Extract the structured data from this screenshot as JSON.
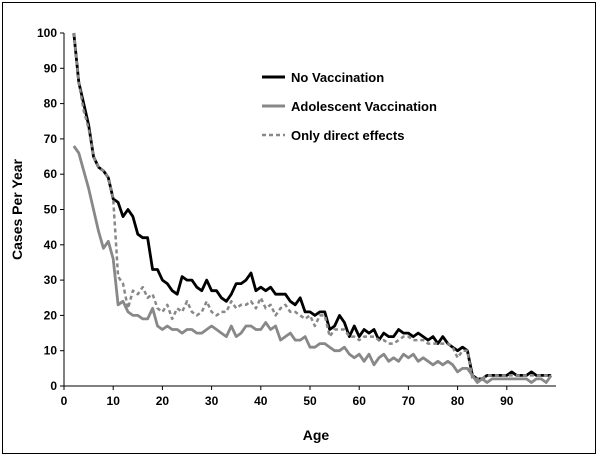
{
  "chart_data": {
    "type": "line",
    "title": "",
    "xlabel": "Age",
    "ylabel": "Cases Per Year",
    "xlim": [
      0,
      100
    ],
    "ylim": [
      0,
      100
    ],
    "x_ticks": [
      0,
      10,
      20,
      30,
      40,
      50,
      60,
      70,
      80,
      90
    ],
    "y_ticks": [
      0,
      10,
      20,
      30,
      40,
      50,
      60,
      70,
      80,
      90,
      100
    ],
    "grid": false,
    "legend_position": "top-right",
    "x": [
      2,
      3,
      4,
      5,
      6,
      7,
      8,
      9,
      10,
      11,
      12,
      13,
      14,
      15,
      16,
      17,
      18,
      19,
      20,
      21,
      22,
      23,
      24,
      25,
      26,
      27,
      28,
      29,
      30,
      31,
      32,
      33,
      34,
      35,
      36,
      37,
      38,
      39,
      40,
      41,
      42,
      43,
      44,
      45,
      46,
      47,
      48,
      49,
      50,
      51,
      52,
      53,
      54,
      55,
      56,
      57,
      58,
      59,
      60,
      61,
      62,
      63,
      64,
      65,
      66,
      67,
      68,
      69,
      70,
      71,
      72,
      73,
      74,
      75,
      76,
      77,
      78,
      79,
      80,
      81,
      82,
      83,
      84,
      85,
      86,
      87,
      88,
      89,
      90,
      91,
      92,
      93,
      94,
      95,
      96,
      97,
      98,
      99
    ],
    "series": [
      {
        "name": "No Vaccination",
        "color": "#000000",
        "dash": "solid",
        "values": [
          100,
          86,
          80,
          74,
          65,
          62,
          61,
          59,
          53,
          52,
          48,
          50,
          48,
          43,
          42,
          42,
          33,
          33,
          30,
          29,
          27,
          26,
          31,
          30,
          30,
          28,
          27,
          30,
          27,
          27,
          25,
          24,
          26,
          29,
          29,
          30,
          32,
          27,
          28,
          27,
          28,
          26,
          26,
          26,
          24,
          23,
          25,
          21,
          21,
          20,
          21,
          21,
          16,
          17,
          20,
          18,
          14,
          17,
          14,
          16,
          15,
          16,
          13,
          15,
          14,
          14,
          16,
          15,
          15,
          14,
          15,
          14,
          13,
          14,
          12,
          14,
          12,
          11,
          10,
          11,
          10,
          3,
          2,
          2,
          3,
          3,
          3,
          3,
          3,
          4,
          3,
          3,
          3,
          4,
          3,
          3,
          3,
          3
        ]
      },
      {
        "name": "Adolescent Vaccination",
        "color": "#888888",
        "dash": "solid",
        "values": [
          68,
          66,
          61,
          56,
          50,
          44,
          39,
          41,
          36,
          23,
          24,
          21,
          20,
          20,
          19,
          19,
          22,
          17,
          16,
          17,
          16,
          16,
          15,
          16,
          16,
          15,
          15,
          16,
          17,
          16,
          15,
          14,
          17,
          14,
          15,
          17,
          17,
          16,
          16,
          18,
          16,
          17,
          13,
          14,
          15,
          13,
          13,
          14,
          11,
          11,
          12,
          12,
          11,
          10,
          10,
          11,
          9,
          8,
          9,
          7,
          9,
          6,
          8,
          9,
          7,
          8,
          7,
          9,
          8,
          9,
          7,
          8,
          7,
          6,
          7,
          6,
          7,
          6,
          4,
          5,
          5,
          3,
          1,
          2,
          1,
          2,
          2,
          2,
          2,
          2,
          2,
          2,
          2,
          1,
          2,
          2,
          1,
          3
        ]
      },
      {
        "name": "Only direct effects",
        "color": "#888888",
        "dash": "dashed",
        "values": [
          100,
          86,
          78,
          73,
          65,
          62,
          61,
          59,
          53,
          31,
          29,
          22,
          27,
          26,
          28,
          25,
          26,
          22,
          21,
          23,
          19,
          22,
          21,
          24,
          21,
          20,
          21,
          24,
          21,
          20,
          21,
          21,
          24,
          22,
          23,
          23,
          24,
          22,
          25,
          22,
          23,
          20,
          22,
          23,
          21,
          21,
          20,
          19,
          20,
          17,
          20,
          20,
          14,
          16,
          16,
          16,
          14,
          14,
          13,
          14,
          14,
          14,
          13,
          13,
          12,
          12,
          13,
          14,
          14,
          13,
          13,
          13,
          12,
          12,
          12,
          12,
          12,
          11,
          8,
          10,
          10,
          2,
          2,
          2,
          3,
          3,
          3,
          3,
          3,
          3,
          3,
          3,
          3,
          3,
          3,
          3,
          3,
          3
        ]
      }
    ]
  }
}
